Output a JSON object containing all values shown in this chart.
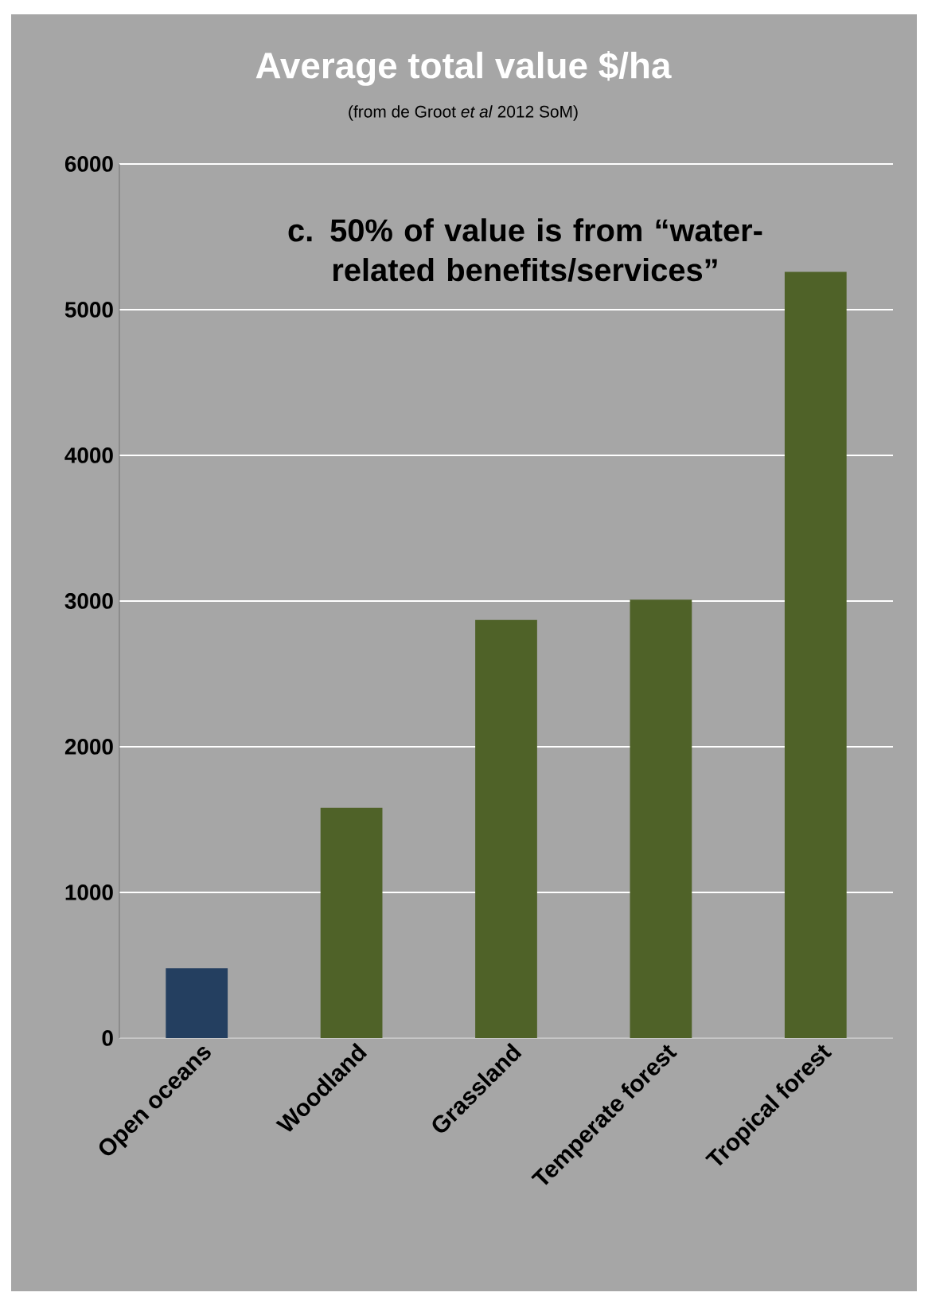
{
  "chart_data": {
    "type": "bar",
    "title": "Average total value $/ha",
    "subtitle": "(from de Groot *et al* 2012 SoM)",
    "categories": [
      "Open oceans",
      "Woodland",
      "Grassland",
      "Temperate forest",
      "Tropical forest"
    ],
    "values": [
      480,
      1580,
      2870,
      3010,
      5260
    ],
    "colors": [
      "#243f60",
      "#4f6228",
      "#4f6228",
      "#4f6228",
      "#4f6228"
    ],
    "ylim": [
      0,
      6000
    ],
    "yticks": [
      0,
      1000,
      2000,
      3000,
      4000,
      5000,
      6000
    ],
    "grid": "y",
    "annotations": [
      "c. 50% of value is from “water-related benefits/services”"
    ]
  }
}
